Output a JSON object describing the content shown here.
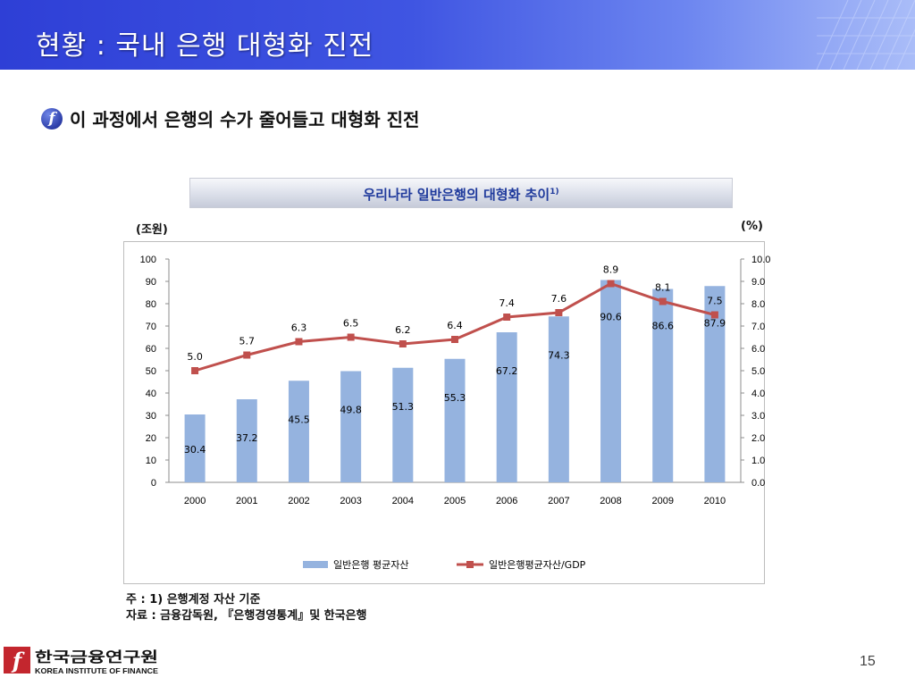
{
  "slide": {
    "title": "현황 : 국내 은행 대형화 진전",
    "bullet_text": "이 과정에서 은행의 수가 줄어들고 대형화 진전",
    "bullet_icon": "f-circle-icon",
    "page_number": "15"
  },
  "chart_data": {
    "type": "bar",
    "title": "우리나라 일반은행의 대형화 추이",
    "title_superscript": "1)",
    "categories": [
      "2000",
      "2001",
      "2002",
      "2003",
      "2004",
      "2005",
      "2006",
      "2007",
      "2008",
      "2009",
      "2010"
    ],
    "y_left_unit": "(조원)",
    "y_right_unit": "(%)",
    "y_left_range": [
      0,
      100
    ],
    "y_left_ticks": [
      "0",
      "10",
      "20",
      "30",
      "40",
      "50",
      "60",
      "70",
      "80",
      "90",
      "100"
    ],
    "y_right_range": [
      0,
      10
    ],
    "y_right_ticks": [
      "0.0",
      "1.0",
      "2.0",
      "3.0",
      "4.0",
      "5.0",
      "6.0",
      "7.0",
      "8.0",
      "9.0",
      "10.0"
    ],
    "grid": false,
    "legend_position": "bottom",
    "series": [
      {
        "name": "일반은행 평균자산",
        "type": "bar",
        "axis": "left",
        "color": "#95b3df",
        "values": [
          30.4,
          37.2,
          45.5,
          49.8,
          51.3,
          55.3,
          67.2,
          74.3,
          90.6,
          86.6,
          87.9
        ],
        "labels": [
          "30.4",
          "37.2",
          "45.5",
          "49.8",
          "51.3",
          "55.3",
          "67.2",
          "74.3",
          "90.6",
          "86.6",
          "87.9"
        ]
      },
      {
        "name": "일반은행평균자산/GDP",
        "type": "line",
        "axis": "right",
        "color": "#c0504d",
        "values": [
          5.0,
          5.7,
          6.3,
          6.5,
          6.2,
          6.4,
          7.4,
          7.6,
          8.9,
          8.1,
          7.5
        ],
        "labels": [
          "5.0",
          "5.7",
          "6.3",
          "6.5",
          "6.2",
          "6.4",
          "7.4",
          "7.6",
          "8.9",
          "8.1",
          "7.5"
        ]
      }
    ]
  },
  "notes": {
    "note": "주 : 1) 은행계정 자산 기준",
    "source": "자료 : 금융감독원, 『은행경영통계』및 한국은행"
  },
  "footer": {
    "logo_korean": "한국금융연구원",
    "logo_english": "KOREA INSTITUTE OF FINANCE"
  }
}
